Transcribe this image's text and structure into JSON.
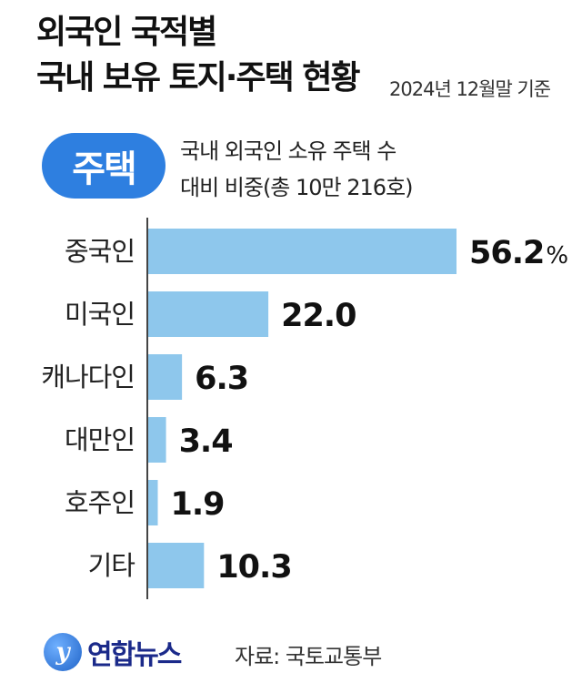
{
  "header": {
    "title_line1": "외국인 국적별",
    "title_line2": "국내 보유 토지·주택 현황",
    "as_of": "2024년 12월말 기준"
  },
  "badge": {
    "label": "주택"
  },
  "description": {
    "line1": "국내 외국인 소유 주택 수",
    "line2": "대비 비중(총 10만 216호)"
  },
  "chart_data": {
    "type": "bar",
    "orientation": "horizontal",
    "categories": [
      "중국인",
      "미국인",
      "캐나다인",
      "대만인",
      "호주인",
      "기타"
    ],
    "values": [
      56.2,
      22.0,
      6.3,
      3.4,
      1.9,
      10.3
    ],
    "value_labels": [
      "56.2",
      "22.0",
      "6.3",
      "3.4",
      "1.9",
      "10.3"
    ],
    "unit": "%",
    "xlim": [
      0,
      60
    ],
    "bar_color": "#8ec7ec",
    "axis_color": "#444444"
  },
  "footer": {
    "logo_mark": "y",
    "logo_text": "연합뉴스",
    "source": "자료: 국토교통부"
  }
}
